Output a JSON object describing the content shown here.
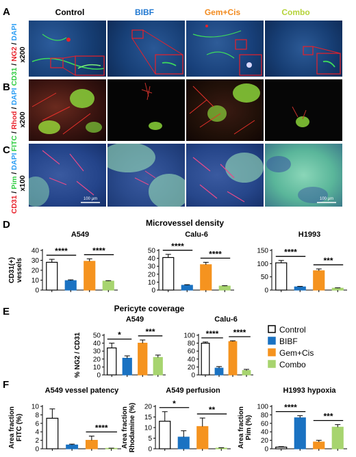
{
  "panel_letters": {
    "a": "A",
    "b": "B",
    "c": "C",
    "d": "D",
    "e": "E",
    "f": "F"
  },
  "column_labels": [
    {
      "text": "Control",
      "color": "#000000"
    },
    {
      "text": "BIBF",
      "color": "#1f77d0"
    },
    {
      "text": "Gem+Cis",
      "color": "#f28a1e"
    },
    {
      "text": "Combo",
      "color": "#b5d33a"
    }
  ],
  "row_labels": {
    "a": {
      "parts": [
        {
          "t": "CD31",
          "c": "#2ecc40"
        },
        {
          "t": " / ",
          "c": "#000000"
        },
        {
          "t": "NG2",
          "c": "#e8202a"
        },
        {
          "t": " / ",
          "c": "#000000"
        },
        {
          "t": "DAPI",
          "c": "#2a9df4"
        }
      ],
      "mag": "x200"
    },
    "b": {
      "parts": [
        {
          "t": "FITC",
          "c": "#2ecc40"
        },
        {
          "t": " / ",
          "c": "#000000"
        },
        {
          "t": "Rhod",
          "c": "#e8202a"
        },
        {
          "t": " / ",
          "c": "#000000"
        },
        {
          "t": "DAPI",
          "c": "#2a9df4"
        }
      ],
      "mag": "x200"
    },
    "c": {
      "parts": [
        {
          "t": "CD31",
          "c": "#e8202a"
        },
        {
          "t": " / ",
          "c": "#000000"
        },
        {
          "t": "Pim",
          "c": "#2ecc40"
        },
        {
          "t": " / ",
          "c": "#000000"
        },
        {
          "t": "DAPI",
          "c": "#2a9df4"
        }
      ],
      "mag": "x100"
    }
  },
  "scale_bar_text": "100 µm",
  "section_titles": {
    "d": "Microvessel density",
    "e": "Pericyte coverage"
  },
  "legend": [
    {
      "name": "Control",
      "color": "#ffffff"
    },
    {
      "name": "BIBF",
      "color": "#1a72c2"
    },
    {
      "name": "Gem+Cis",
      "color": "#f5931f"
    },
    {
      "name": "Combo",
      "color": "#a7d46f"
    }
  ],
  "chart_data": [
    {
      "id": "D-A549",
      "type": "bar",
      "title": "A549",
      "ylabel": [
        "CD31(+)",
        "vessels"
      ],
      "ylim": [
        0,
        40
      ],
      "yticks": [
        0,
        10,
        20,
        30,
        40
      ],
      "values": [
        28,
        9.5,
        29,
        9
      ],
      "errors": [
        3,
        0.8,
        2.5,
        0.5
      ],
      "sig": [
        {
          "from": 0,
          "to": 1,
          "label": "****"
        },
        {
          "from": 2,
          "to": 3,
          "label": "****"
        }
      ]
    },
    {
      "id": "D-Calu6",
      "type": "bar",
      "title": "Calu-6",
      "ylabel": [],
      "ylim": [
        0,
        50
      ],
      "yticks": [
        0,
        10,
        20,
        30,
        40,
        50
      ],
      "values": [
        41,
        6,
        32,
        5
      ],
      "errors": [
        4,
        0.8,
        3,
        0.5
      ],
      "sig": [
        {
          "from": 0,
          "to": 1,
          "label": "****"
        },
        {
          "from": 2,
          "to": 3,
          "label": "****"
        }
      ]
    },
    {
      "id": "D-H1993",
      "type": "bar",
      "title": "H1993",
      "ylabel": [],
      "ylim": [
        0,
        150
      ],
      "yticks": [
        0,
        50,
        100,
        150
      ],
      "values": [
        103,
        12,
        73,
        7
      ],
      "errors": [
        9,
        2,
        7,
        1.5
      ],
      "sig": [
        {
          "from": 0,
          "to": 1,
          "label": "****"
        },
        {
          "from": 2,
          "to": 3,
          "label": "***"
        }
      ]
    },
    {
      "id": "E-A549",
      "type": "bar",
      "title": "A549",
      "ylabel": [
        "% NG2 / CD31"
      ],
      "ylim": [
        0,
        50
      ],
      "yticks": [
        0,
        10,
        20,
        30,
        40,
        50
      ],
      "values": [
        34,
        21,
        40,
        22
      ],
      "errors": [
        6,
        3,
        4,
        3
      ],
      "sig": [
        {
          "from": 0,
          "to": 1,
          "label": "*"
        },
        {
          "from": 2,
          "to": 3,
          "label": "***"
        }
      ]
    },
    {
      "id": "E-Calu6",
      "type": "bar",
      "title": "Calu-6",
      "ylabel": [],
      "ylim": [
        0,
        100
      ],
      "yticks": [
        0,
        20,
        40,
        60,
        80,
        100
      ],
      "values": [
        80,
        17,
        84,
        11
      ],
      "errors": [
        3,
        4,
        2,
        3
      ],
      "sig": [
        {
          "from": 0,
          "to": 1,
          "label": "****"
        },
        {
          "from": 2,
          "to": 3,
          "label": "****"
        }
      ]
    },
    {
      "id": "F-patency",
      "type": "bar",
      "title": "A549 vessel patency",
      "ylabel": [
        "Area fraction",
        "FITC (%)"
      ],
      "ylim": [
        0,
        10
      ],
      "yticks": [
        0,
        2,
        4,
        6,
        8,
        10
      ],
      "values": [
        7.2,
        0.9,
        2.0,
        0.1
      ],
      "errors": [
        2.2,
        0.2,
        1.0,
        0.05
      ],
      "sig": [
        {
          "from": 2,
          "to": 3,
          "label": "****"
        }
      ]
    },
    {
      "id": "F-perfusion",
      "type": "bar",
      "title": "A549 perfusion",
      "ylabel": [
        "Area fraction",
        "Rhodamine (%)"
      ],
      "ylim": [
        0,
        20
      ],
      "yticks": [
        0,
        5,
        10,
        15,
        20
      ],
      "values": [
        13,
        5.5,
        10.5,
        0.3
      ],
      "errors": [
        4.5,
        3,
        4,
        0.2
      ],
      "sig": [
        {
          "from": 0,
          "to": 1,
          "label": "*"
        },
        {
          "from": 2,
          "to": 3,
          "label": "**"
        }
      ]
    },
    {
      "id": "F-hypoxia",
      "type": "bar",
      "title": "H1993 hypoxia",
      "ylabel": [
        "Area fraction",
        "Pim (%)"
      ],
      "ylim": [
        0,
        100
      ],
      "yticks": [
        0,
        20,
        40,
        60,
        80,
        100
      ],
      "values": [
        4,
        73,
        16,
        51
      ],
      "errors": [
        1,
        5,
        4,
        6
      ],
      "sig": [
        {
          "from": 0,
          "to": 1,
          "label": "****"
        },
        {
          "from": 2,
          "to": 3,
          "label": "***"
        }
      ]
    }
  ]
}
